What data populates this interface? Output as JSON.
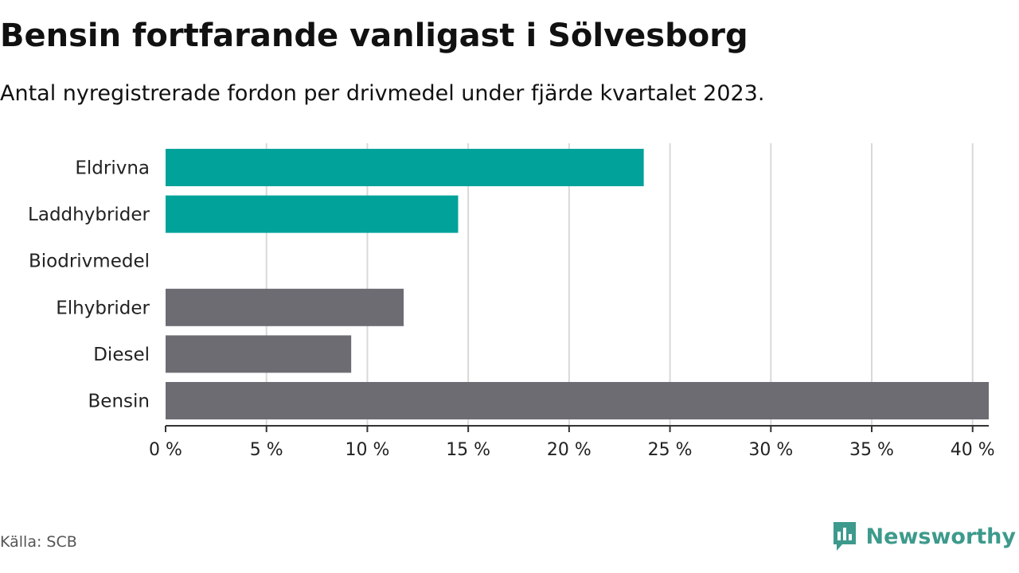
{
  "title": "Bensin fortfarande vanligast i Sölvesborg",
  "subtitle": "Antal nyregistrerade fordon per drivmedel under fjärde kvartalet 2023.",
  "source": "Källa: SCB",
  "brand": "Newsworthy",
  "colors": {
    "teal": "#00a29a",
    "gray": "#6d6c73",
    "grid": "#d9d9d9",
    "axis": "#333333",
    "brand": "#3d9a8c"
  },
  "chart_data": {
    "type": "bar",
    "orientation": "horizontal",
    "categories": [
      "Eldrivna",
      "Laddhybrider",
      "Biodrivmedel",
      "Elhybrider",
      "Diesel",
      "Bensin"
    ],
    "values": [
      23.7,
      14.5,
      0,
      11.8,
      9.2,
      40.8
    ],
    "bar_colors": [
      "teal",
      "teal",
      "teal",
      "gray",
      "gray",
      "gray"
    ],
    "unit": "%",
    "xlim": [
      0,
      40.8
    ],
    "ticks": [
      0,
      5,
      10,
      15,
      20,
      25,
      30,
      35,
      40
    ],
    "tick_labels": [
      "0 %",
      "5 %",
      "10 %",
      "15 %",
      "20 %",
      "25 %",
      "30 %",
      "35 %",
      "40 %"
    ],
    "grid": true,
    "xlabel": "",
    "ylabel": ""
  }
}
